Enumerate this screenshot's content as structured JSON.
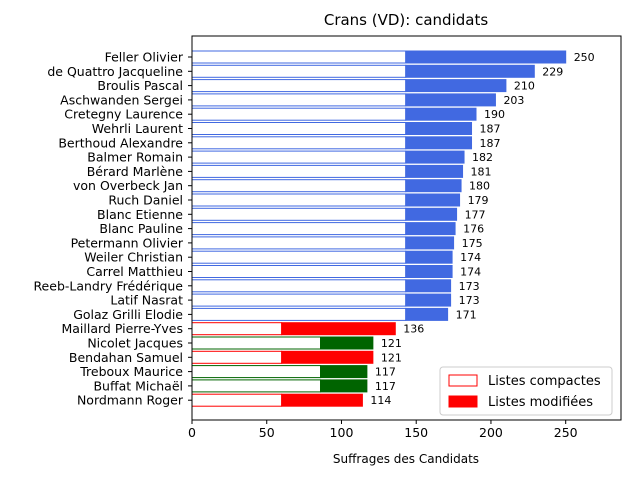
{
  "chart_data": {
    "type": "bar",
    "orientation": "horizontal",
    "stacked": true,
    "title": "Crans (VD): candidats",
    "xlabel": "Suffrages des Candidats",
    "ylabel": "",
    "xlim": [
      0,
      287
    ],
    "x_ticks": [
      0,
      50,
      100,
      150,
      200,
      250
    ],
    "grid": false,
    "legend_position": "lower-right",
    "legend": [
      {
        "label": "Listes compactes",
        "style": "outline"
      },
      {
        "label": "Listes modifiées",
        "style": "filled"
      }
    ],
    "colors": {
      "blue": "#4169e1",
      "red": "#ff0000",
      "green": "#006400"
    },
    "categories": [
      "Feller Olivier",
      "de Quattro Jacqueline",
      "Broulis Pascal",
      "Aschwanden Sergei",
      "Cretegny Laurence",
      "Wehrli Laurent",
      "Berthoud Alexandre",
      "Balmer Romain",
      "Bérard Marlène",
      "von Overbeck Jan",
      "Ruch Daniel",
      "Blanc Etienne",
      "Blanc Pauline",
      "Petermann Olivier",
      "Weiler Christian",
      "Carrel Matthieu",
      "Reeb-Landry Frédérique",
      "Latif Nasrat",
      "Golaz Grilli Elodie",
      "Maillard Pierre-Yves",
      "Nicolet Jacques",
      "Bendahan Samuel",
      "Treboux Maurice",
      "Buffat Michaël",
      "Nordmann Roger"
    ],
    "series": [
      {
        "name": "Listes compactes",
        "values": [
          143,
          143,
          143,
          143,
          143,
          143,
          143,
          143,
          143,
          143,
          143,
          143,
          143,
          143,
          143,
          143,
          143,
          143,
          143,
          60,
          86,
          60,
          86,
          86,
          60
        ]
      },
      {
        "name": "Listes modifiées",
        "values": [
          107,
          86,
          67,
          60,
          47,
          44,
          44,
          39,
          38,
          37,
          36,
          34,
          33,
          32,
          31,
          31,
          30,
          30,
          28,
          76,
          35,
          61,
          31,
          31,
          54
        ]
      }
    ],
    "totals": [
      250,
      229,
      210,
      203,
      190,
      187,
      187,
      182,
      181,
      180,
      179,
      177,
      176,
      175,
      174,
      174,
      173,
      173,
      171,
      136,
      121,
      121,
      117,
      117,
      114
    ],
    "bar_colors": [
      "blue",
      "blue",
      "blue",
      "blue",
      "blue",
      "blue",
      "blue",
      "blue",
      "blue",
      "blue",
      "blue",
      "blue",
      "blue",
      "blue",
      "blue",
      "blue",
      "blue",
      "blue",
      "blue",
      "red",
      "green",
      "red",
      "green",
      "green",
      "red"
    ]
  }
}
